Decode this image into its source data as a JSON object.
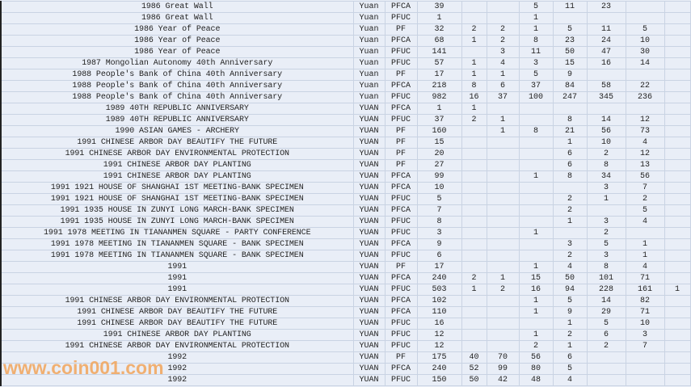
{
  "watermark": "www.coin001.com",
  "colors": {
    "background": "#e9eef7",
    "gridline": "#c9d3e3",
    "watermark": "#f2a55a"
  },
  "rows": [
    {
      "name": "1986 Great Wall",
      "currency": "Yuan",
      "grade": "PFCA",
      "total": "39",
      "counts": [
        "",
        "",
        "5",
        "11",
        "23",
        "",
        ""
      ]
    },
    {
      "name": "1986 Great Wall",
      "currency": "Yuan",
      "grade": "PFUC",
      "total": "1",
      "counts": [
        "",
        "",
        "1",
        "",
        "",
        "",
        ""
      ]
    },
    {
      "name": "1986 Year of Peace",
      "currency": "Yuan",
      "grade": "PF",
      "total": "32",
      "counts": [
        "2",
        "2",
        "1",
        "5",
        "11",
        "5",
        ""
      ]
    },
    {
      "name": "1986 Year of Peace",
      "currency": "Yuan",
      "grade": "PFCA",
      "total": "68",
      "counts": [
        "1",
        "2",
        "8",
        "23",
        "24",
        "10",
        ""
      ]
    },
    {
      "name": "1986 Year of Peace",
      "currency": "Yuan",
      "grade": "PFUC",
      "total": "141",
      "counts": [
        "",
        "3",
        "11",
        "50",
        "47",
        "30",
        ""
      ]
    },
    {
      "name": "1987 Mongolian Autonomy 40th Anniversary",
      "currency": "Yuan",
      "grade": "PFUC",
      "total": "57",
      "counts": [
        "1",
        "4",
        "3",
        "15",
        "16",
        "14",
        ""
      ]
    },
    {
      "name": "1988 People's Bank of China 40th Anniversary",
      "currency": "Yuan",
      "grade": "PF",
      "total": "17",
      "counts": [
        "1",
        "1",
        "5",
        "9",
        "",
        "",
        ""
      ]
    },
    {
      "name": "1988 People's Bank of China 40th Anniversary",
      "currency": "Yuan",
      "grade": "PFCA",
      "total": "218",
      "counts": [
        "8",
        "6",
        "37",
        "84",
        "58",
        "22",
        ""
      ]
    },
    {
      "name": "1988 People's Bank of China 40th Anniversary",
      "currency": "Yuan",
      "grade": "PFUC",
      "total": "982",
      "counts": [
        "16",
        "37",
        "100",
        "247",
        "345",
        "236",
        ""
      ]
    },
    {
      "name": "1989 40TH REPUBLIC ANNIVERSARY",
      "currency": "YUAN",
      "grade": "PFCA",
      "total": "1",
      "counts": [
        "1",
        "",
        "",
        "",
        "",
        "",
        ""
      ]
    },
    {
      "name": "1989 40TH REPUBLIC ANNIVERSARY",
      "currency": "YUAN",
      "grade": "PFUC",
      "total": "37",
      "counts": [
        "2",
        "1",
        "",
        "8",
        "14",
        "12",
        ""
      ]
    },
    {
      "name": "1990 ASIAN GAMES - ARCHERY",
      "currency": "YUAN",
      "grade": "PF",
      "total": "160",
      "counts": [
        "",
        "1",
        "8",
        "21",
        "56",
        "73",
        ""
      ]
    },
    {
      "name": "1991 CHINESE ARBOR DAY BEAUTIFY THE FUTURE",
      "currency": "YUAN",
      "grade": "PF",
      "total": "15",
      "counts": [
        "",
        "",
        "",
        "1",
        "10",
        "4",
        ""
      ]
    },
    {
      "name": "1991 CHINESE ARBOR DAY ENVIRONMENTAL PROTECTION",
      "currency": "YUAN",
      "grade": "PF",
      "total": "20",
      "counts": [
        "",
        "",
        "",
        "6",
        "2",
        "12",
        ""
      ]
    },
    {
      "name": "1991 CHINESE ARBOR DAY PLANTING",
      "currency": "YUAN",
      "grade": "PF",
      "total": "27",
      "counts": [
        "",
        "",
        "",
        "6",
        "8",
        "13",
        ""
      ]
    },
    {
      "name": "1991 CHINESE ARBOR DAY PLANTING",
      "currency": "YUAN",
      "grade": "PFCA",
      "total": "99",
      "counts": [
        "",
        "",
        "1",
        "8",
        "34",
        "56",
        ""
      ]
    },
    {
      "name": "1991 1921 HOUSE OF SHANGHAI 1ST MEETING-BANK SPECIMEN",
      "currency": "YUAN",
      "grade": "PFCA",
      "total": "10",
      "counts": [
        "",
        "",
        "",
        "",
        "3",
        "7",
        ""
      ]
    },
    {
      "name": "1991 1921 HOUSE OF SHANGHAI 1ST MEETING-BANK SPECIMEN",
      "currency": "YUAN",
      "grade": "PFUC",
      "total": "5",
      "counts": [
        "",
        "",
        "",
        "2",
        "1",
        "2",
        ""
      ]
    },
    {
      "name": "1991 1935 HOUSE IN ZUNYI LONG MARCH-BANK SPECIMEN",
      "currency": "YUAN",
      "grade": "PFCA",
      "total": "7",
      "counts": [
        "",
        "",
        "",
        "2",
        "",
        "5",
        ""
      ]
    },
    {
      "name": "1991 1935 HOUSE IN ZUNYI LONG MARCH-BANK SPECIMEN",
      "currency": "YUAN",
      "grade": "PFUC",
      "total": "8",
      "counts": [
        "",
        "",
        "",
        "1",
        "3",
        "4",
        ""
      ]
    },
    {
      "name": "1991 1978 MEETING IN TIANANMEN SQUARE - PARTY CONFERENCE",
      "currency": "YUAN",
      "grade": "PFUC",
      "total": "3",
      "counts": [
        "",
        "",
        "1",
        "",
        "2",
        "",
        ""
      ]
    },
    {
      "name": "1991 1978 MEETING IN TIANANMEN SQUARE - BANK SPECIMEN",
      "currency": "YUAN",
      "grade": "PFCA",
      "total": "9",
      "counts": [
        "",
        "",
        "",
        "3",
        "5",
        "1",
        ""
      ]
    },
    {
      "name": "1991 1978 MEETING IN TIANANMEN SQUARE - BANK SPECIMEN",
      "currency": "YUAN",
      "grade": "PFUC",
      "total": "6",
      "counts": [
        "",
        "",
        "",
        "2",
        "3",
        "1",
        ""
      ]
    },
    {
      "name": "1991",
      "currency": "YUAN",
      "grade": "PF",
      "total": "17",
      "counts": [
        "",
        "",
        "1",
        "4",
        "8",
        "4",
        ""
      ]
    },
    {
      "name": "1991",
      "currency": "YUAN",
      "grade": "PFCA",
      "total": "240",
      "counts": [
        "2",
        "1",
        "15",
        "50",
        "101",
        "71",
        ""
      ]
    },
    {
      "name": "1991",
      "currency": "YUAN",
      "grade": "PFUC",
      "total": "503",
      "counts": [
        "1",
        "2",
        "16",
        "94",
        "228",
        "161",
        "1"
      ]
    },
    {
      "name": "1991 CHINESE ARBOR DAY ENVIRONMENTAL PROTECTION",
      "currency": "YUAN",
      "grade": "PFCA",
      "total": "102",
      "counts": [
        "",
        "",
        "1",
        "5",
        "14",
        "82",
        ""
      ]
    },
    {
      "name": "1991 CHINESE ARBOR DAY BEAUTIFY THE FUTURE",
      "currency": "YUAN",
      "grade": "PFCA",
      "total": "110",
      "counts": [
        "",
        "",
        "1",
        "9",
        "29",
        "71",
        ""
      ]
    },
    {
      "name": "1991 CHINESE ARBOR DAY BEAUTIFY THE FUTURE",
      "currency": "YUAN",
      "grade": "PFUC",
      "total": "16",
      "counts": [
        "",
        "",
        "",
        "1",
        "5",
        "10",
        ""
      ]
    },
    {
      "name": "1991 CHINESE ARBOR DAY PLANTING",
      "currency": "YUAN",
      "grade": "PFUC",
      "total": "12",
      "counts": [
        "",
        "",
        "1",
        "2",
        "6",
        "3",
        ""
      ]
    },
    {
      "name": "1991 CHINESE ARBOR DAY ENVIRONMENTAL PROTECTION",
      "currency": "YUAN",
      "grade": "PFUC",
      "total": "12",
      "counts": [
        "",
        "",
        "2",
        "1",
        "2",
        "7",
        ""
      ]
    },
    {
      "name": "1992",
      "currency": "YUAN",
      "grade": "PF",
      "total": "175",
      "counts": [
        "40",
        "70",
        "56",
        "6",
        "",
        "",
        ""
      ]
    },
    {
      "name": "1992",
      "currency": "YUAN",
      "grade": "PFCA",
      "total": "240",
      "counts": [
        "52",
        "99",
        "80",
        "5",
        "",
        "",
        ""
      ]
    },
    {
      "name": "1992",
      "currency": "YUAN",
      "grade": "PFUC",
      "total": "150",
      "counts": [
        "50",
        "42",
        "48",
        "4",
        "",
        "",
        ""
      ]
    }
  ]
}
